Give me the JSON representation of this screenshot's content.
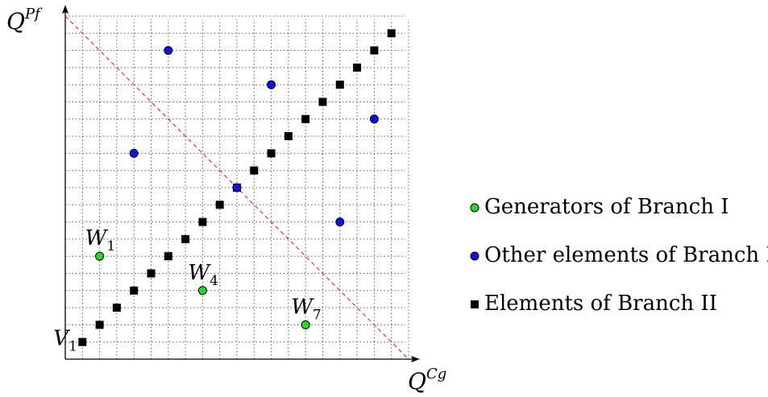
{
  "chart_data": {
    "type": "scatter",
    "title": "",
    "xlabel": {
      "base": "Q",
      "sup": "Cg"
    },
    "ylabel": {
      "base": "Q",
      "sup": "Pf"
    },
    "xlim": [
      0,
      20
    ],
    "ylim": [
      0,
      20
    ],
    "grid": "dotted",
    "diagonal": {
      "from": [
        0,
        20
      ],
      "to": [
        20,
        0
      ],
      "style": "dashed",
      "color": "#e02020"
    },
    "legend_position": "right",
    "series": [
      {
        "name": "Generators of Branch I",
        "marker": "circle",
        "color": "#22dd22",
        "points": [
          [
            2,
            6
          ],
          [
            8,
            4
          ],
          [
            14,
            2
          ]
        ]
      },
      {
        "name": "Other elements of Branch I",
        "marker": "circle",
        "color": "#1111ee",
        "points": [
          [
            6,
            18
          ],
          [
            4,
            12
          ],
          [
            12,
            16
          ],
          [
            18,
            14
          ],
          [
            10,
            10
          ],
          [
            16,
            8
          ]
        ]
      },
      {
        "name": "Elements of Branch II",
        "marker": "square",
        "color": "#000000",
        "points": [
          [
            1,
            1
          ],
          [
            2,
            2
          ],
          [
            3,
            3
          ],
          [
            4,
            4
          ],
          [
            5,
            5
          ],
          [
            6,
            6
          ],
          [
            7,
            7
          ],
          [
            8,
            8
          ],
          [
            9,
            9
          ],
          [
            10,
            10
          ],
          [
            11,
            11
          ],
          [
            12,
            12
          ],
          [
            13,
            13
          ],
          [
            14,
            14
          ],
          [
            15,
            15
          ],
          [
            16,
            16
          ],
          [
            17,
            17
          ],
          [
            18,
            18
          ],
          [
            19,
            19
          ]
        ]
      }
    ],
    "annotations": [
      {
        "base": "V",
        "sub": "1",
        "x": 1,
        "y": 1,
        "anchor": "left"
      },
      {
        "base": "W",
        "sub": "1",
        "x": 2,
        "y": 6,
        "anchor": "above"
      },
      {
        "base": "W",
        "sub": "4",
        "x": 8,
        "y": 4,
        "anchor": "above"
      },
      {
        "base": "W",
        "sub": "7",
        "x": 14,
        "y": 2,
        "anchor": "above"
      }
    ]
  }
}
